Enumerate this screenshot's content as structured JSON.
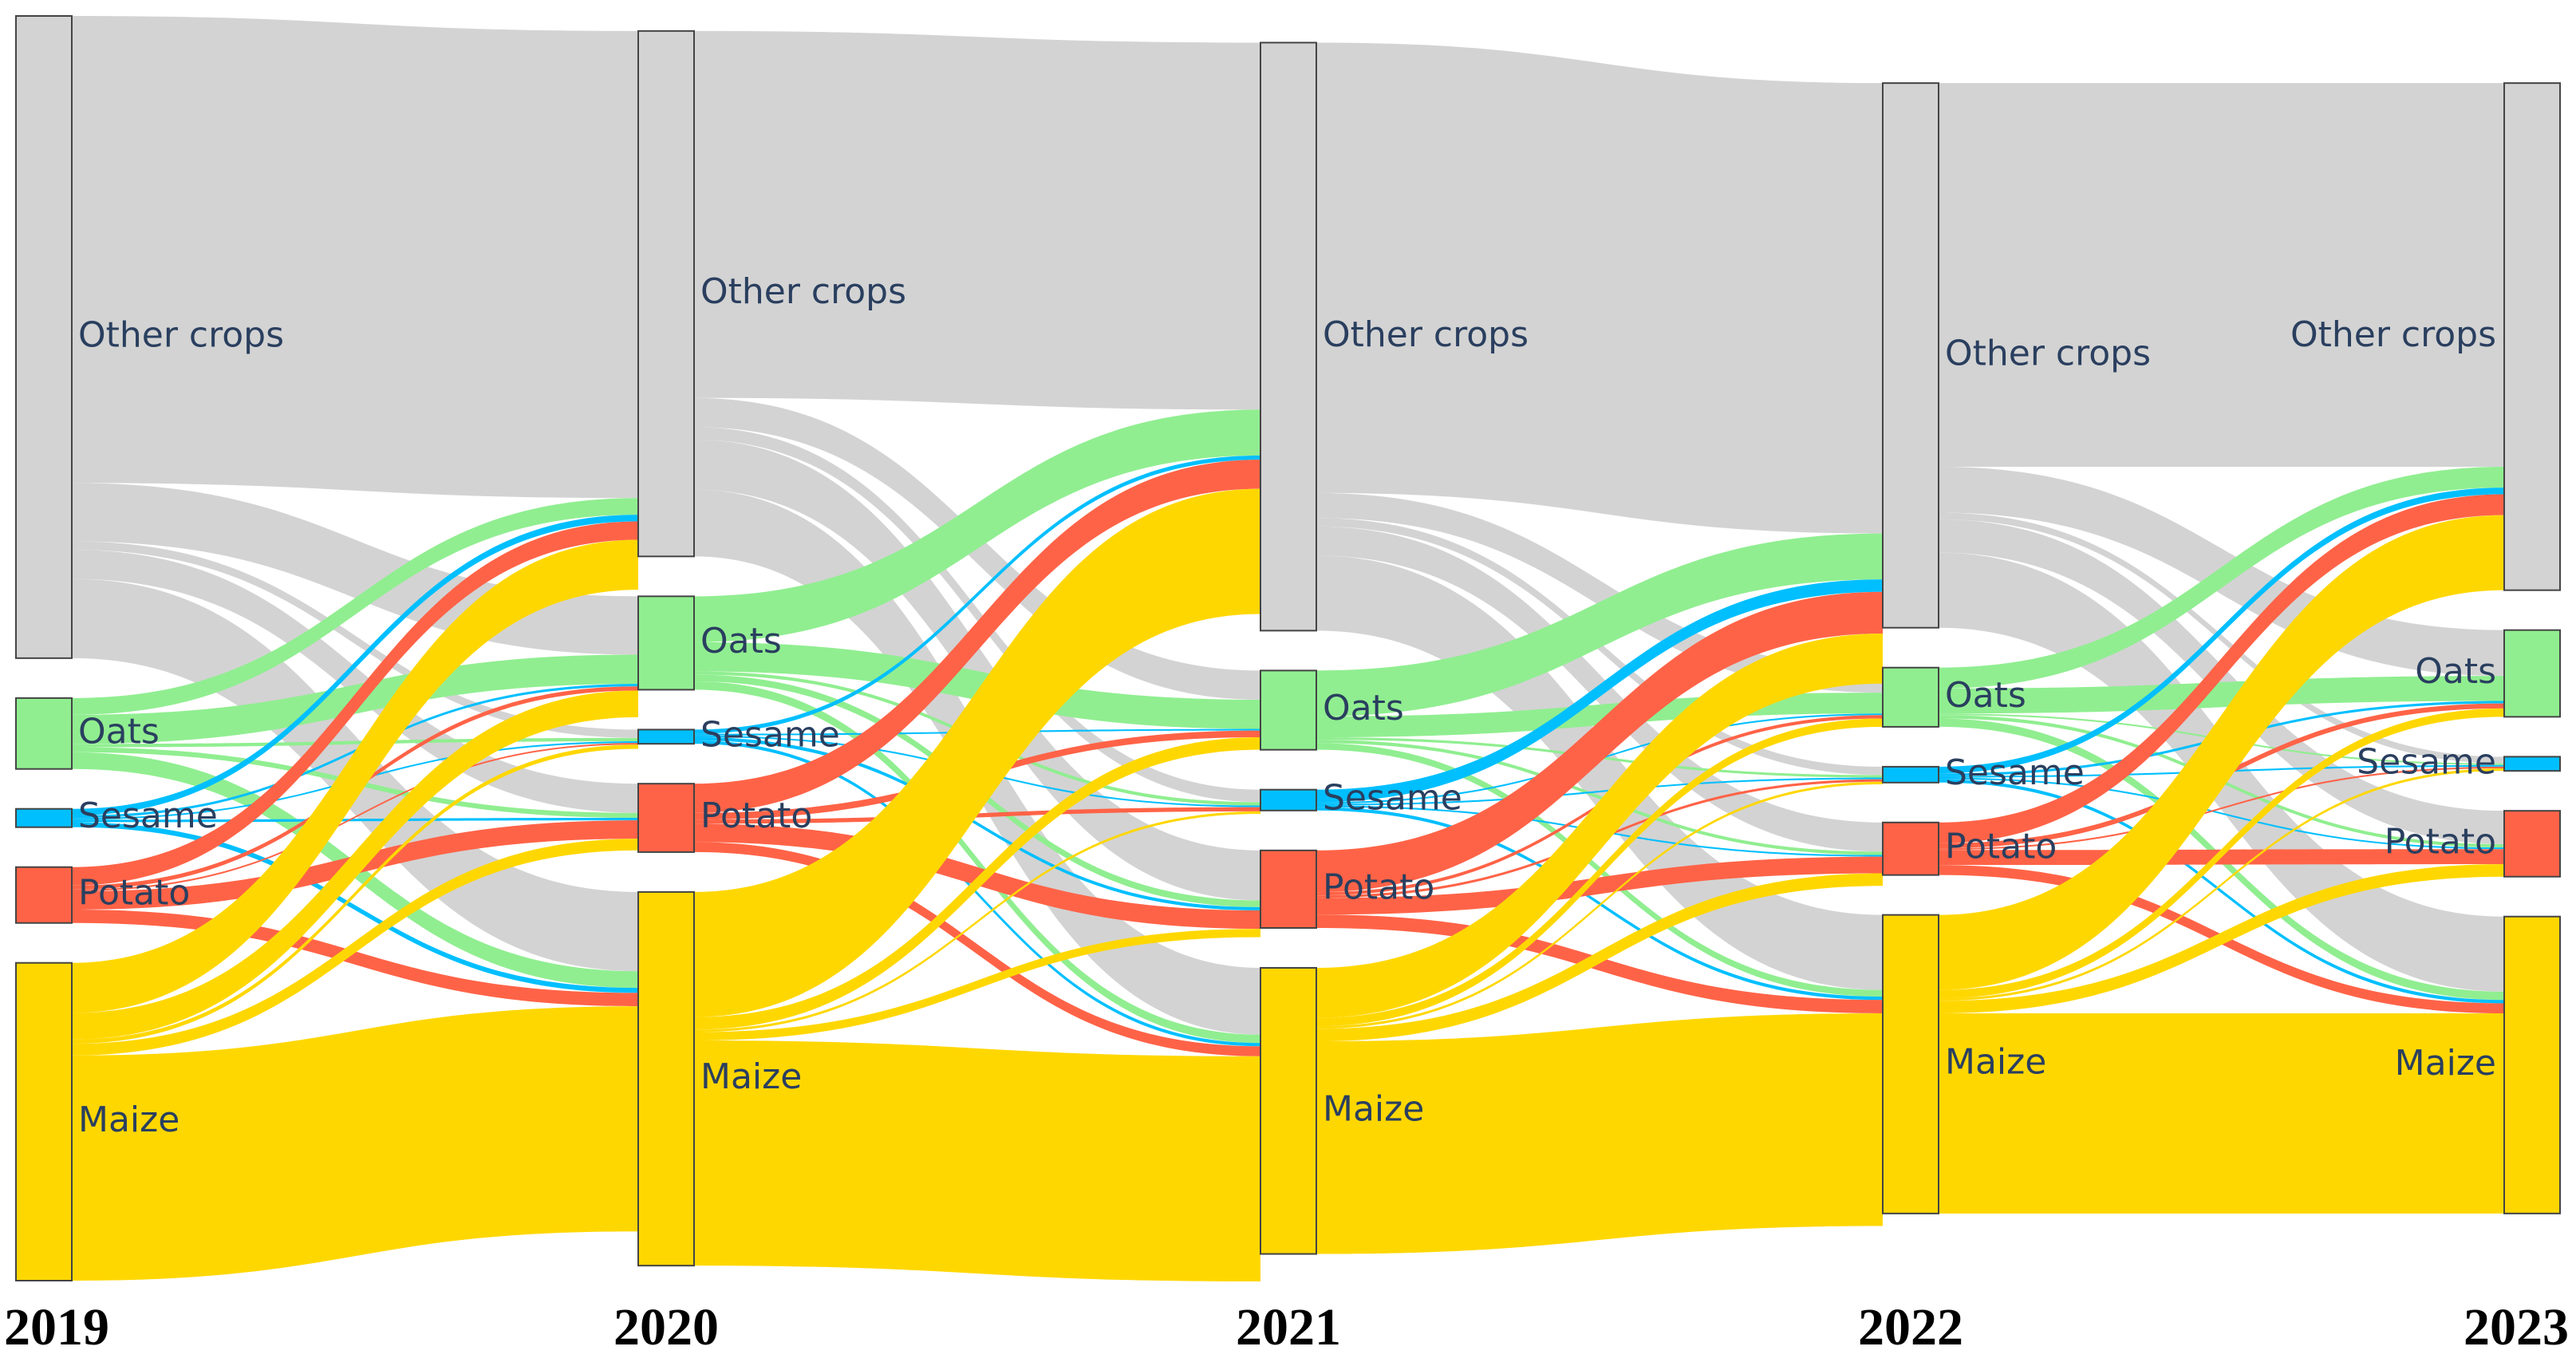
{
  "chart_data": {
    "type": "sankey",
    "years": [
      "2019",
      "2020",
      "2021",
      "2022",
      "2023"
    ],
    "crops": [
      "Other crops",
      "Oats",
      "Sesame",
      "Potato",
      "Maize"
    ],
    "colors": {
      "Other crops": "#d3d3d3",
      "Oats": "#90ee90",
      "Sesame": "#00bfff",
      "Potato": "#ff6347",
      "Maize": "#ffd700"
    },
    "flows": [
      {
        "from": "2019",
        "to": "2020",
        "matrix": {
          "Other crops": {
            "Other crops": 560,
            "Oats": 70,
            "Sesame": 10,
            "Potato": 35,
            "Maize": 95
          },
          "Oats": {
            "Other crops": 20,
            "Oats": 35,
            "Sesame": 4,
            "Potato": 6,
            "Maize": 20
          },
          "Sesame": {
            "Other crops": 8,
            "Oats": 3,
            "Sesame": 2,
            "Potato": 3,
            "Maize": 6
          },
          "Potato": {
            "Other crops": 22,
            "Oats": 5,
            "Sesame": 2,
            "Potato": 22,
            "Maize": 16
          },
          "Maize": {
            "Other crops": 60,
            "Oats": 32,
            "Sesame": 5,
            "Potato": 14,
            "Maize": 270
          }
        }
      },
      {
        "from": "2020",
        "to": "2021",
        "matrix": {
          "Other crops": {
            "Other crops": 440,
            "Oats": 35,
            "Sesame": 15,
            "Potato": 60,
            "Maize": 80
          },
          "Oats": {
            "Other crops": 55,
            "Oats": 35,
            "Sesame": 4,
            "Potato": 8,
            "Maize": 10
          },
          "Sesame": {
            "Other crops": 5,
            "Oats": 2,
            "Sesame": 2,
            "Potato": 4,
            "Maize": 4
          },
          "Potato": {
            "Other crops": 35,
            "Oats": 8,
            "Sesame": 5,
            "Potato": 22,
            "Maize": 12
          },
          "Maize": {
            "Other crops": 150,
            "Oats": 15,
            "Sesame": 3,
            "Potato": 10,
            "Maize": 270
          }
        }
      },
      {
        "from": "2021",
        "to": "2022",
        "matrix": {
          "Other crops": {
            "Other crops": 540,
            "Oats": 30,
            "Sesame": 10,
            "Potato": 35,
            "Maize": 90
          },
          "Oats": {
            "Other crops": 55,
            "Oats": 25,
            "Sesame": 3,
            "Potato": 4,
            "Maize": 8
          },
          "Sesame": {
            "Other crops": 15,
            "Oats": 2,
            "Sesame": 2,
            "Potato": 2,
            "Maize": 4
          },
          "Potato": {
            "Other crops": 50,
            "Oats": 4,
            "Sesame": 3,
            "Potato": 20,
            "Maize": 16
          },
          "Maize": {
            "Other crops": 60,
            "Oats": 10,
            "Sesame": 3,
            "Potato": 15,
            "Maize": 255
          }
        }
      },
      {
        "from": "2022",
        "to": "2023",
        "matrix": {
          "Other crops": {
            "Other crops": 460,
            "Oats": 55,
            "Sesame": 8,
            "Potato": 40,
            "Maize": 90
          },
          "Oats": {
            "Other crops": 25,
            "Oats": 30,
            "Sesame": 2,
            "Potato": 4,
            "Maize": 10
          },
          "Sesame": {
            "Other crops": 8,
            "Oats": 3,
            "Sesame": 2,
            "Potato": 2,
            "Maize": 4
          },
          "Potato": {
            "Other crops": 25,
            "Oats": 6,
            "Sesame": 2,
            "Potato": 18,
            "Maize": 12
          },
          "Maize": {
            "Other crops": 90,
            "Oats": 10,
            "Sesame": 3,
            "Potato": 15,
            "Maize": 240
          }
        }
      }
    ]
  }
}
